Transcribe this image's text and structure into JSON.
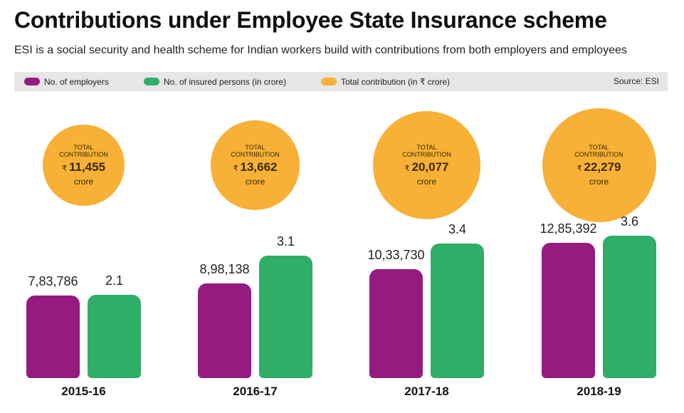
{
  "title": "Contributions under Employee State Insurance scheme",
  "subtitle": "ESI is a social security and health scheme for Indian workers build with contributions from both employers and employees",
  "legend": {
    "employers": "No. of employers",
    "insured": "No. of insured persons (in crore)",
    "contribution": "Total contribution (in ₹ crore)",
    "source": "Source: ESI"
  },
  "colors": {
    "employers": "#951b81",
    "insured": "#30ad67",
    "contribution": "#f7b136",
    "legend_bg": "#e6e6e6"
  },
  "circle_text": {
    "label": "TOTAL CONTRIBUTION",
    "rupee": "₹",
    "unit": "crore"
  },
  "chart_data": {
    "type": "bar",
    "categories": [
      "2015-16",
      "2016-17",
      "2017-18",
      "2018-19"
    ],
    "series": [
      {
        "name": "No. of employers",
        "values": [
          783786,
          898138,
          1033730,
          1285392
        ],
        "labels": [
          "7,83,786",
          "8,98,138",
          "10,33,730",
          "12,85,392"
        ]
      },
      {
        "name": "No. of insured persons (in crore)",
        "values": [
          2.1,
          3.1,
          3.4,
          3.6
        ],
        "labels": [
          "2.1",
          "3.1",
          "3.4",
          "3.6"
        ]
      },
      {
        "name": "Total contribution (in ₹ crore)",
        "values": [
          11455,
          13662,
          20077,
          22279
        ],
        "labels": [
          "11,455",
          "13,662",
          "20,077",
          "22,279"
        ]
      }
    ],
    "title": "Contributions under Employee State Insurance scheme",
    "legend_position": "top",
    "grid": false
  }
}
